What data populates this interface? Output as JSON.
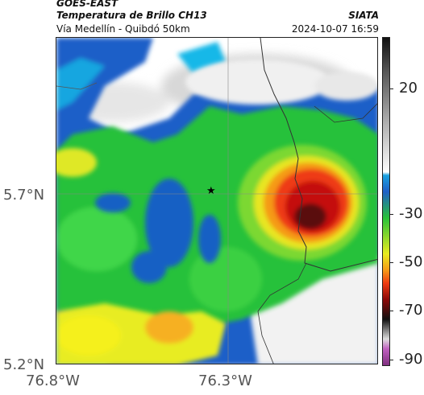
{
  "header": {
    "satellite": "GOES-EAST",
    "product": "Temperatura de Brillo CH13",
    "route": "Vía Medellín - Quibdó 50km",
    "source": "SIATA",
    "timestamp": "2024-10-07 16:59"
  },
  "axes": {
    "x_ticks": [
      "76.8°W",
      "76.3°W"
    ],
    "y_ticks": [
      "5.7°N",
      "5.2°N"
    ]
  },
  "colorbar": {
    "ticks": [
      "20",
      "-30",
      "-50",
      "-70",
      "-90"
    ]
  },
  "marker": {
    "symbol": "★",
    "name": "station-star"
  }
}
